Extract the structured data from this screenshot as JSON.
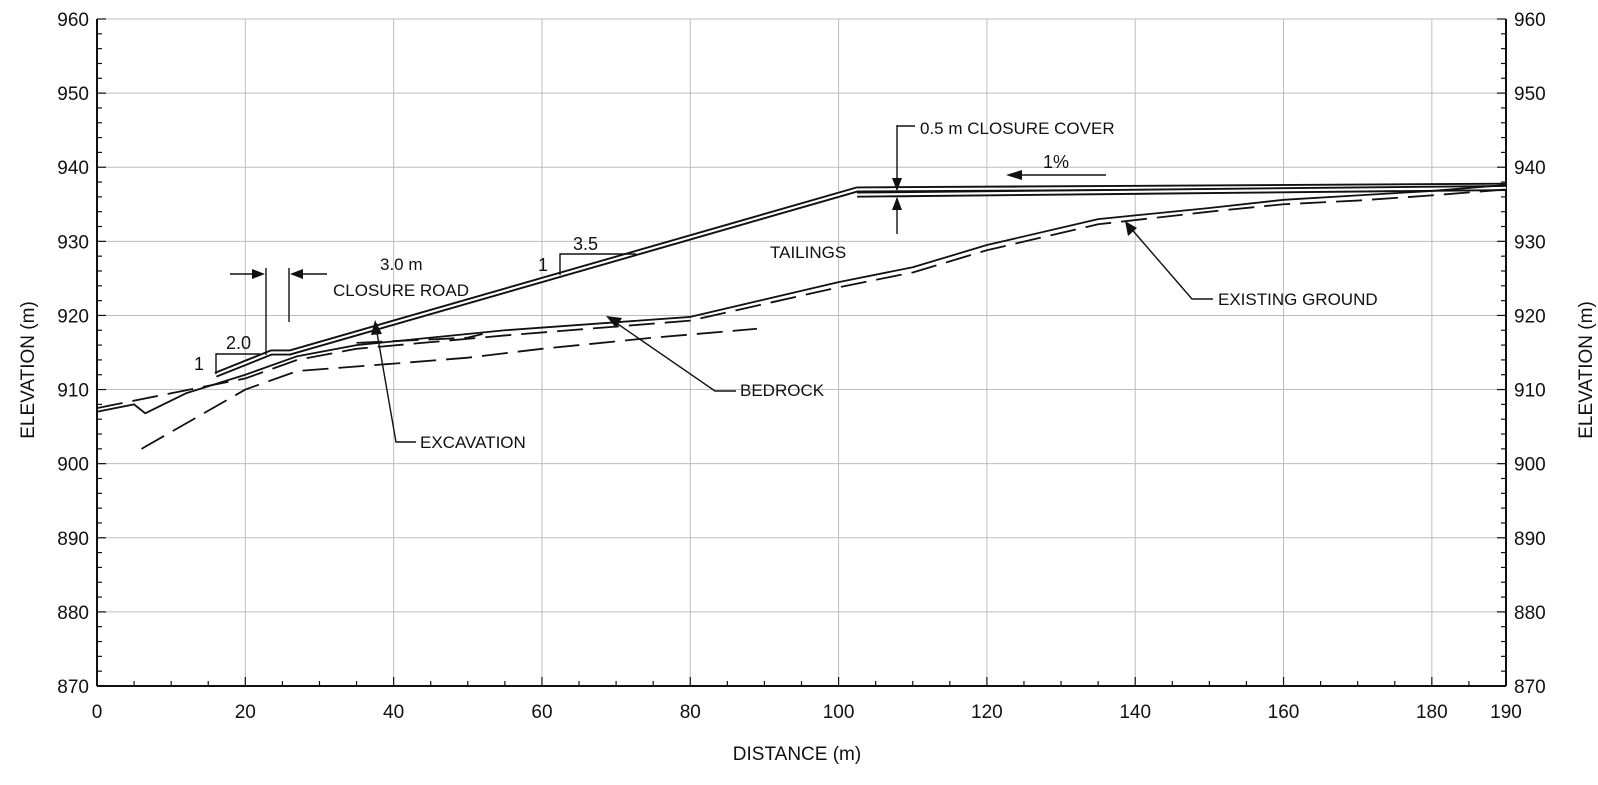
{
  "chart_data": {
    "type": "line",
    "title": "",
    "xlabel": "DISTANCE  (m)",
    "ylabel": "ELEVATION  (m)",
    "ylabel_right": "ELEVATION  (m)",
    "xlim": [
      0,
      190
    ],
    "ylim": [
      870,
      960
    ],
    "x_ticks": [
      0,
      20,
      40,
      60,
      80,
      100,
      120,
      140,
      160,
      180,
      190
    ],
    "y_ticks": [
      870,
      880,
      890,
      900,
      910,
      920,
      930,
      940,
      950,
      960
    ],
    "grid": true,
    "series": [
      {
        "name": "CLOSURE COVER (TOP)",
        "style": "double",
        "x": [
          16,
          23.5,
          26,
          102.5,
          190
        ],
        "y": [
          912,
          915,
          915,
          937,
          937.5
        ]
      },
      {
        "name": "TAILINGS",
        "style": "double",
        "x": [
          102.5,
          190
        ],
        "y": [
          936.3,
          937.2
        ]
      },
      {
        "name": "EXISTING GROUND",
        "style": "solid",
        "x": [
          0,
          5,
          6.5,
          12,
          20,
          27,
          35,
          55,
          80,
          100,
          110,
          120,
          135,
          150,
          160,
          170,
          180,
          190
        ],
        "y": [
          907,
          908,
          906.8,
          909.5,
          912,
          914.5,
          916,
          918,
          919.8,
          924.5,
          926.5,
          929.5,
          933,
          934.5,
          935.6,
          936.2,
          936.8,
          937.6
        ]
      },
      {
        "name": "EXISTING GROUND (DASHED)",
        "style": "dashed",
        "x": [
          0,
          10,
          20,
          27,
          35,
          55,
          80,
          100,
          110,
          120,
          135,
          150,
          160,
          170,
          180,
          190
        ],
        "y": [
          907.5,
          909.5,
          911.5,
          914,
          915.5,
          917.3,
          919.3,
          923.8,
          925.8,
          928.8,
          932.3,
          934,
          935,
          935.5,
          936.2,
          937
        ]
      },
      {
        "name": "EXCAVATION",
        "style": "dashed",
        "x": [
          35,
          50,
          52
        ],
        "y": [
          916.3,
          917,
          917.5
        ]
      },
      {
        "name": "BEDROCK",
        "style": "dashed",
        "x": [
          6,
          20,
          27,
          40,
          50,
          60,
          75,
          89
        ],
        "y": [
          902,
          910,
          912.5,
          913.5,
          914.3,
          915.5,
          917,
          918.2
        ]
      }
    ],
    "annotations": {
      "closure_cover": "0.5 m CLOSURE COVER",
      "slope_top_percent": "1%",
      "tailings": "TAILINGS",
      "existing_ground": "EXISTING GROUND",
      "bedrock": "BEDROCK",
      "excavation": "EXCAVATION",
      "closure_road_width": "3.0 m",
      "closure_road": "CLOSURE ROAD",
      "slope_upper_run": "3.5",
      "slope_upper_rise": "1",
      "slope_lower_run": "2.0",
      "slope_lower_rise": "1"
    }
  }
}
